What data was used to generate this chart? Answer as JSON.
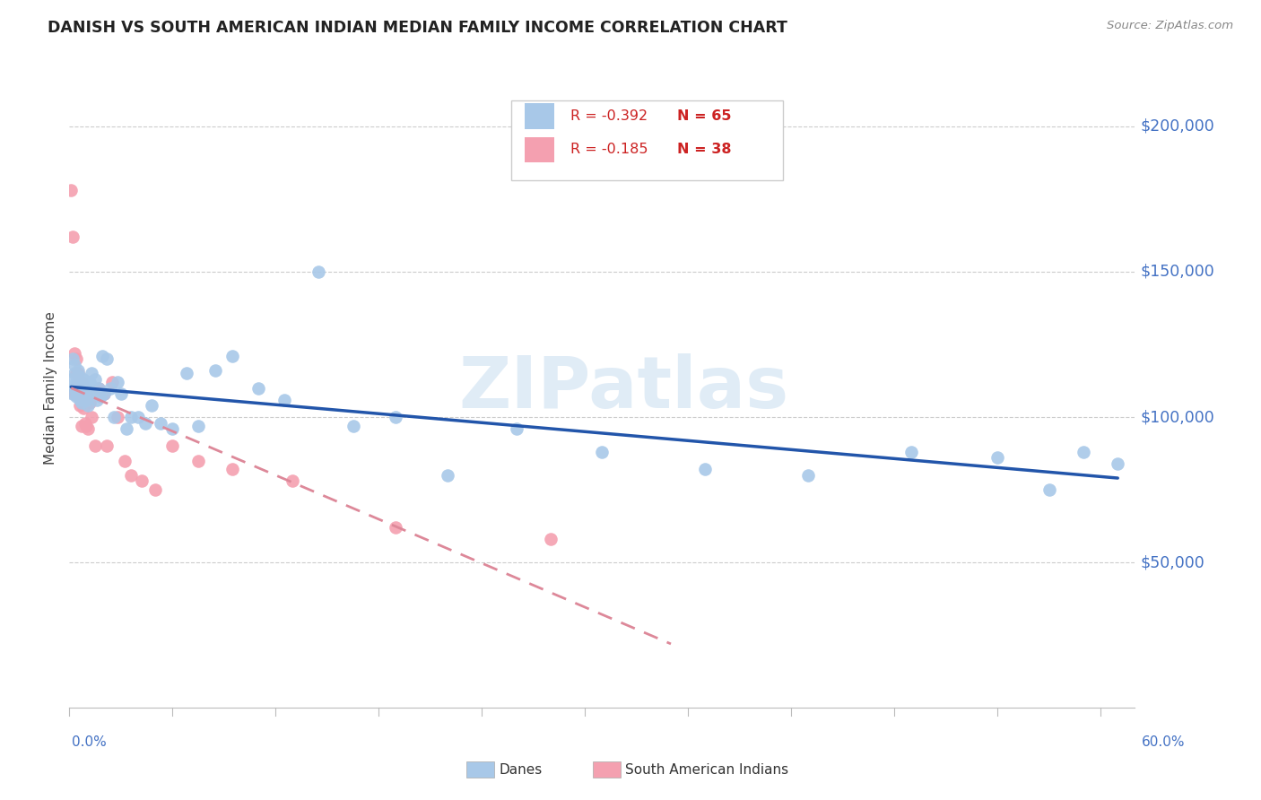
{
  "title": "DANISH VS SOUTH AMERICAN INDIAN MEDIAN FAMILY INCOME CORRELATION CHART",
  "source": "Source: ZipAtlas.com",
  "ylabel": "Median Family Income",
  "dane_R": "-0.392",
  "dane_N": "65",
  "sai_R": "-0.185",
  "sai_N": "38",
  "ytick_labels": [
    "$50,000",
    "$100,000",
    "$150,000",
    "$200,000"
  ],
  "ytick_values": [
    50000,
    100000,
    150000,
    200000
  ],
  "xlim": [
    0.0,
    0.62
  ],
  "ylim": [
    0,
    220000
  ],
  "dane_color": "#a8c8e8",
  "sai_color": "#f4a0b0",
  "dane_line_color": "#2255aa",
  "sai_line_color": "#dd8899",
  "watermark": "ZIPatlas",
  "background_color": "#ffffff",
  "dane_points_x": [
    0.001,
    0.002,
    0.002,
    0.003,
    0.003,
    0.003,
    0.004,
    0.004,
    0.005,
    0.005,
    0.005,
    0.006,
    0.006,
    0.006,
    0.007,
    0.007,
    0.007,
    0.008,
    0.008,
    0.009,
    0.009,
    0.01,
    0.01,
    0.011,
    0.011,
    0.012,
    0.013,
    0.014,
    0.015,
    0.016,
    0.017,
    0.018,
    0.019,
    0.02,
    0.022,
    0.024,
    0.026,
    0.028,
    0.03,
    0.033,
    0.036,
    0.04,
    0.044,
    0.048,
    0.053,
    0.06,
    0.068,
    0.075,
    0.085,
    0.095,
    0.11,
    0.125,
    0.145,
    0.165,
    0.19,
    0.22,
    0.26,
    0.31,
    0.37,
    0.43,
    0.49,
    0.54,
    0.57,
    0.59,
    0.61
  ],
  "dane_points_y": [
    113000,
    120000,
    108000,
    115000,
    110000,
    118000,
    112000,
    107000,
    116000,
    111000,
    108000,
    114000,
    109000,
    106000,
    112000,
    108000,
    105000,
    113000,
    107000,
    111000,
    108000,
    110000,
    106000,
    108000,
    104000,
    112000,
    115000,
    108000,
    113000,
    106000,
    110000,
    107000,
    121000,
    108000,
    120000,
    110000,
    100000,
    112000,
    108000,
    96000,
    100000,
    100000,
    98000,
    104000,
    98000,
    96000,
    115000,
    97000,
    116000,
    121000,
    110000,
    106000,
    150000,
    97000,
    100000,
    80000,
    96000,
    88000,
    82000,
    80000,
    88000,
    86000,
    75000,
    88000,
    84000
  ],
  "sai_points_x": [
    0.001,
    0.002,
    0.003,
    0.003,
    0.004,
    0.004,
    0.005,
    0.005,
    0.005,
    0.006,
    0.006,
    0.006,
    0.007,
    0.007,
    0.008,
    0.008,
    0.009,
    0.01,
    0.01,
    0.011,
    0.012,
    0.013,
    0.015,
    0.017,
    0.02,
    0.022,
    0.025,
    0.028,
    0.032,
    0.036,
    0.042,
    0.05,
    0.06,
    0.075,
    0.095,
    0.13,
    0.19,
    0.28
  ],
  "sai_points_y": [
    178000,
    162000,
    122000,
    108000,
    115000,
    120000,
    112000,
    108000,
    115000,
    111000,
    108000,
    104000,
    112000,
    97000,
    110000,
    103000,
    98000,
    108000,
    97000,
    96000,
    105000,
    100000,
    90000,
    110000,
    108000,
    90000,
    112000,
    100000,
    85000,
    80000,
    78000,
    75000,
    90000,
    85000,
    82000,
    78000,
    62000,
    58000
  ]
}
